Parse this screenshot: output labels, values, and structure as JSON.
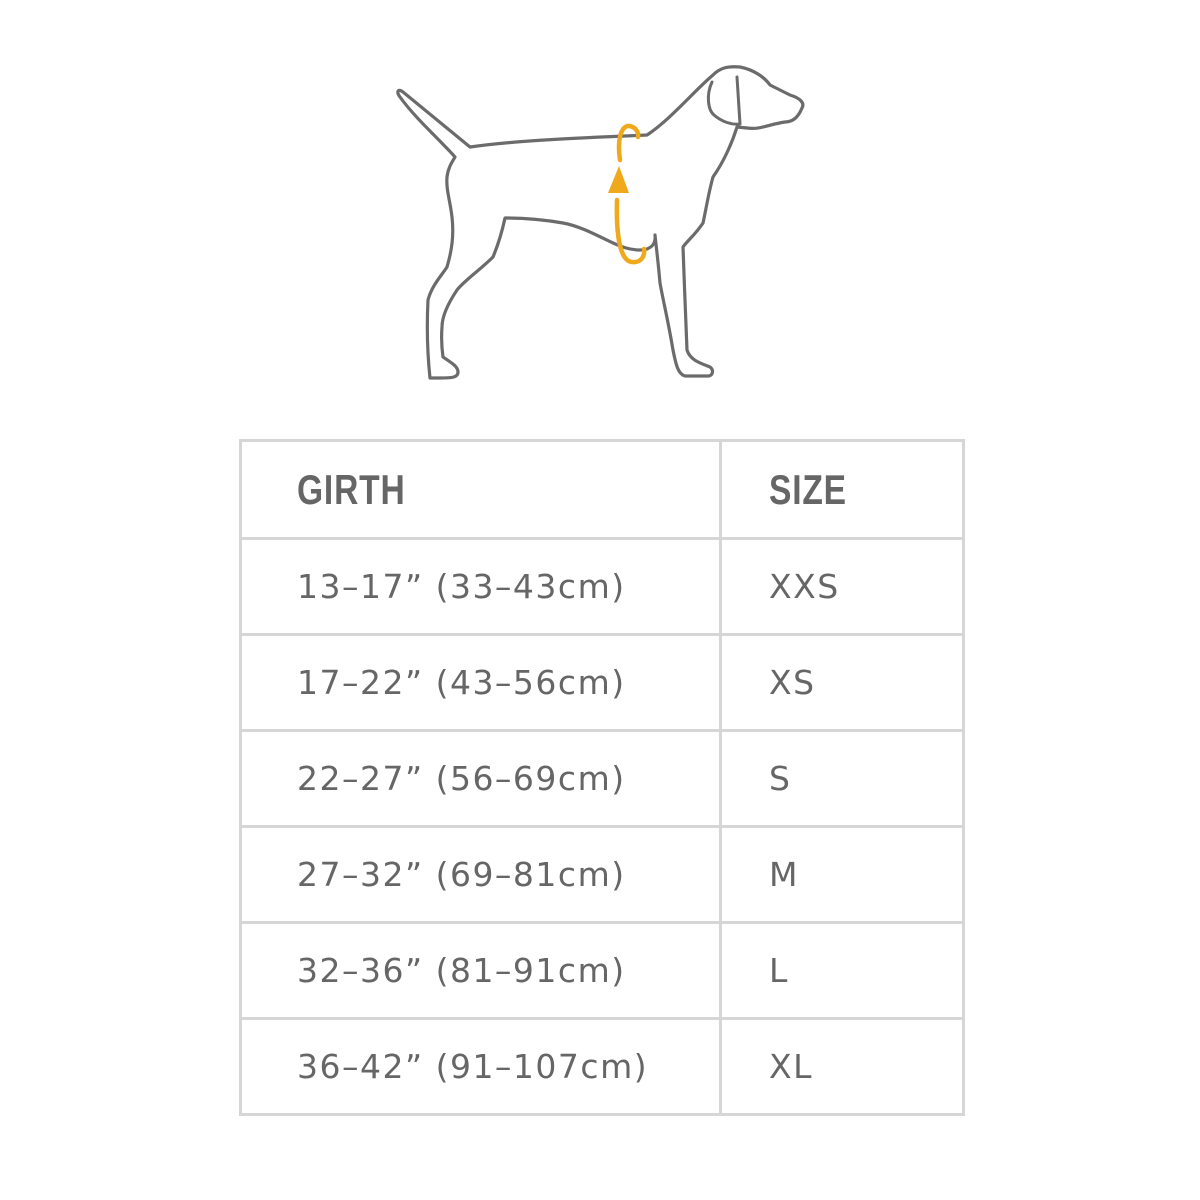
{
  "illustration": {
    "subject": "dog-girth-measurement",
    "outline_color": "#6b6b6b",
    "accent_color": "#f0a81c"
  },
  "table": {
    "headers": {
      "girth": "GIRTH",
      "size": "SIZE"
    },
    "rows": [
      {
        "girth": "13–17” (33–43cm)",
        "size": "XXS"
      },
      {
        "girth": "17–22” (43–56cm)",
        "size": "XS"
      },
      {
        "girth": "22–27” (56–69cm)",
        "size": "S"
      },
      {
        "girth": "27–32” (69–81cm)",
        "size": "M"
      },
      {
        "girth": "32–36” (81–91cm)",
        "size": "L"
      },
      {
        "girth": "36–42” (91–107cm)",
        "size": "XL"
      }
    ],
    "text_color": "#666666",
    "border_color": "#d6d6d6"
  }
}
